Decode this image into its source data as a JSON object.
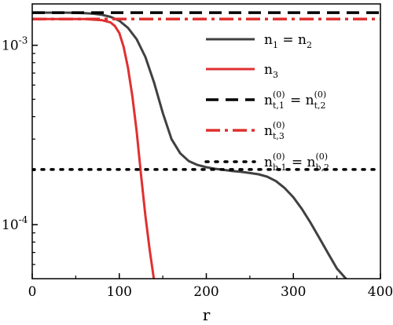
{
  "chart_data": {
    "type": "line",
    "title": "",
    "xlabel": "r",
    "ylabel": "",
    "xlim": [
      0,
      400
    ],
    "ylim": [
      5e-05,
      0.0017
    ],
    "yscale": "log",
    "grid": false,
    "legend_position": "top-right",
    "x_ticks": [
      0,
      100,
      200,
      300,
      400
    ],
    "x_tick_labels": [
      "0",
      "100",
      "200",
      "300",
      "400"
    ],
    "y_ticks": [
      0.0001,
      0.001
    ],
    "y_tick_labels": [
      {
        "base": "10",
        "exp": "-4"
      },
      {
        "base": "10",
        "exp": "-3"
      }
    ],
    "series": [
      {
        "name": "n1 = n2",
        "color": "#404040",
        "style": "solid",
        "x": [
          0,
          40,
          60,
          70,
          80,
          90,
          100,
          110,
          120,
          130,
          140,
          150,
          160,
          170,
          180,
          190,
          200,
          210,
          220,
          230,
          240,
          250,
          260,
          270,
          280,
          290,
          300,
          310,
          320,
          330,
          340,
          350,
          362
        ],
        "y": [
          0.00152,
          0.00152,
          0.00151,
          0.0015,
          0.00148,
          0.00144,
          0.00137,
          0.00125,
          0.00108,
          0.00086,
          0.00062,
          0.00042,
          0.0003,
          0.00025,
          0.000226,
          0.000215,
          0.000209,
          0.000205,
          0.000202,
          0.000199,
          0.000197,
          0.000194,
          0.000191,
          0.000185,
          0.000175,
          0.00016,
          0.000142,
          0.000122,
          0.000102,
          8.4e-05,
          6.9e-05,
          5.7e-05,
          4.9e-05
        ]
      },
      {
        "name": "n3",
        "color": "#e03030",
        "style": "solid",
        "x": [
          0,
          60,
          70,
          80,
          90,
          95,
          100,
          105,
          110,
          115,
          120,
          125,
          130,
          135,
          140
        ],
        "y": [
          0.0014,
          0.0014,
          0.00139,
          0.00138,
          0.00134,
          0.00128,
          0.00117,
          0.00098,
          0.00075,
          0.00052,
          0.00033,
          0.00019,
          0.000112,
          7.2e-05,
          4.9e-05
        ]
      },
      {
        "name": "n(0)t,1 = n(0)t,2",
        "color": "#000000",
        "style": "dashed",
        "x": [
          0,
          400
        ],
        "y": [
          0.00152,
          0.00152
        ]
      },
      {
        "name": "n(0)t,3",
        "color": "#e03030",
        "style": "dashdot",
        "x": [
          0,
          400
        ],
        "y": [
          0.0014,
          0.0014
        ]
      },
      {
        "name": "n(0)b,1 = n(0)b,2",
        "color": "#000000",
        "style": "dotted",
        "x": [
          0,
          400
        ],
        "y": [
          0.000203,
          0.000203
        ]
      }
    ]
  },
  "legend": [
    {
      "main": "n",
      "parts": [
        {
          "sub": "1"
        },
        {
          "text": " = n"
        },
        {
          "sub": "2"
        }
      ]
    },
    {
      "main": "n",
      "parts": [
        {
          "sub": "3"
        }
      ]
    },
    {
      "main": "n",
      "parts": [
        {
          "stack": true,
          "sup": "(0)",
          "sub": "t,1"
        },
        {
          "text": " = n"
        },
        {
          "stack": true,
          "sup": "(0)",
          "sub": "t,2"
        }
      ]
    },
    {
      "main": "n",
      "parts": [
        {
          "stack": true,
          "sup": "(0)",
          "sub": "t,3"
        }
      ]
    },
    {
      "main": "n",
      "parts": [
        {
          "stack": true,
          "sup": "(0)",
          "sub": "b,1"
        },
        {
          "text": " = n"
        },
        {
          "stack": true,
          "sup": "(0)",
          "sub": "b,2"
        }
      ]
    }
  ]
}
